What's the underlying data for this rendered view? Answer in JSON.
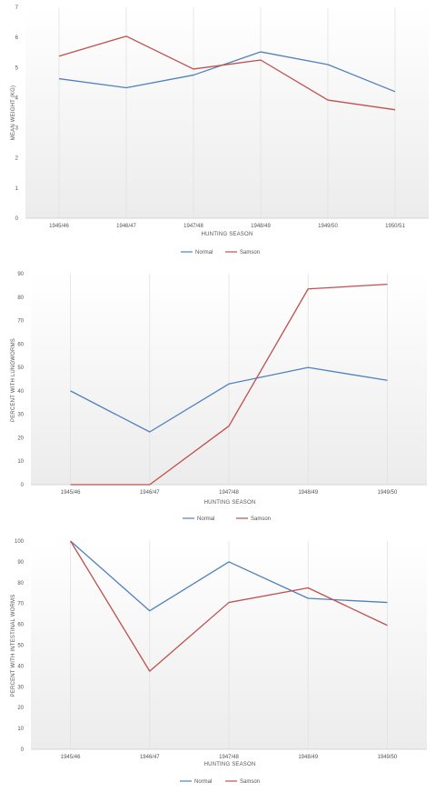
{
  "chart_data": [
    {
      "type": "line",
      "title": "",
      "xlabel": "HUNTING SEASON",
      "ylabel": "MEAN WEIGHT (KG)",
      "categories": [
        "1945/46",
        "1946/47",
        "1947/48",
        "1948/49",
        "1949/50",
        "1950/51"
      ],
      "ylim": [
        0,
        7
      ],
      "yticks": [
        "0",
        "1",
        "2",
        "3",
        "4",
        "5",
        "6",
        "7"
      ],
      "grid": "vertical",
      "legend": "bottom",
      "series": [
        {
          "name": "Normal",
          "color": "#4f81bd",
          "values": [
            4.63,
            4.33,
            4.75,
            5.52,
            5.1,
            4.2
          ]
        },
        {
          "name": "Samson",
          "color": "#c0504d",
          "values": [
            5.38,
            6.04,
            4.95,
            5.25,
            3.92,
            3.6
          ]
        }
      ]
    },
    {
      "type": "line",
      "title": "",
      "xlabel": "HUNTING SEASON",
      "ylabel": "PERCENT WITH LUNGWORMS",
      "categories": [
        "1945/46",
        "1946/47",
        "1947/48",
        "1948/49",
        "1949/50"
      ],
      "ylim": [
        0,
        90
      ],
      "yticks": [
        "0",
        "10",
        "20",
        "30",
        "40",
        "50",
        "60",
        "70",
        "80",
        "90"
      ],
      "grid": "vertical",
      "legend": "bottom",
      "series": [
        {
          "name": "Normal",
          "color": "#4f81bd",
          "values": [
            40,
            22.5,
            43,
            50,
            44.5
          ]
        },
        {
          "name": "Samson",
          "color": "#c0504d",
          "values": [
            0,
            0,
            25,
            83.5,
            85.5
          ]
        }
      ]
    },
    {
      "type": "line",
      "title": "",
      "xlabel": "HUNTING SEASON",
      "ylabel": "PERCENT WITH INTESTINAL WORMS",
      "categories": [
        "1945/46",
        "1946/47",
        "1947/48",
        "1948/49",
        "1949/50"
      ],
      "ylim": [
        0,
        100
      ],
      "yticks": [
        "0",
        "10",
        "20",
        "30",
        "40",
        "50",
        "60",
        "70",
        "80",
        "90",
        "100"
      ],
      "grid": "vertical",
      "legend": "bottom",
      "series": [
        {
          "name": "Normal",
          "color": "#4f81bd",
          "values": [
            100,
            66.5,
            90,
            72.5,
            70.5
          ]
        },
        {
          "name": "Samson",
          "color": "#c0504d",
          "values": [
            100,
            37.5,
            70.5,
            77.5,
            59.5
          ]
        }
      ]
    }
  ]
}
